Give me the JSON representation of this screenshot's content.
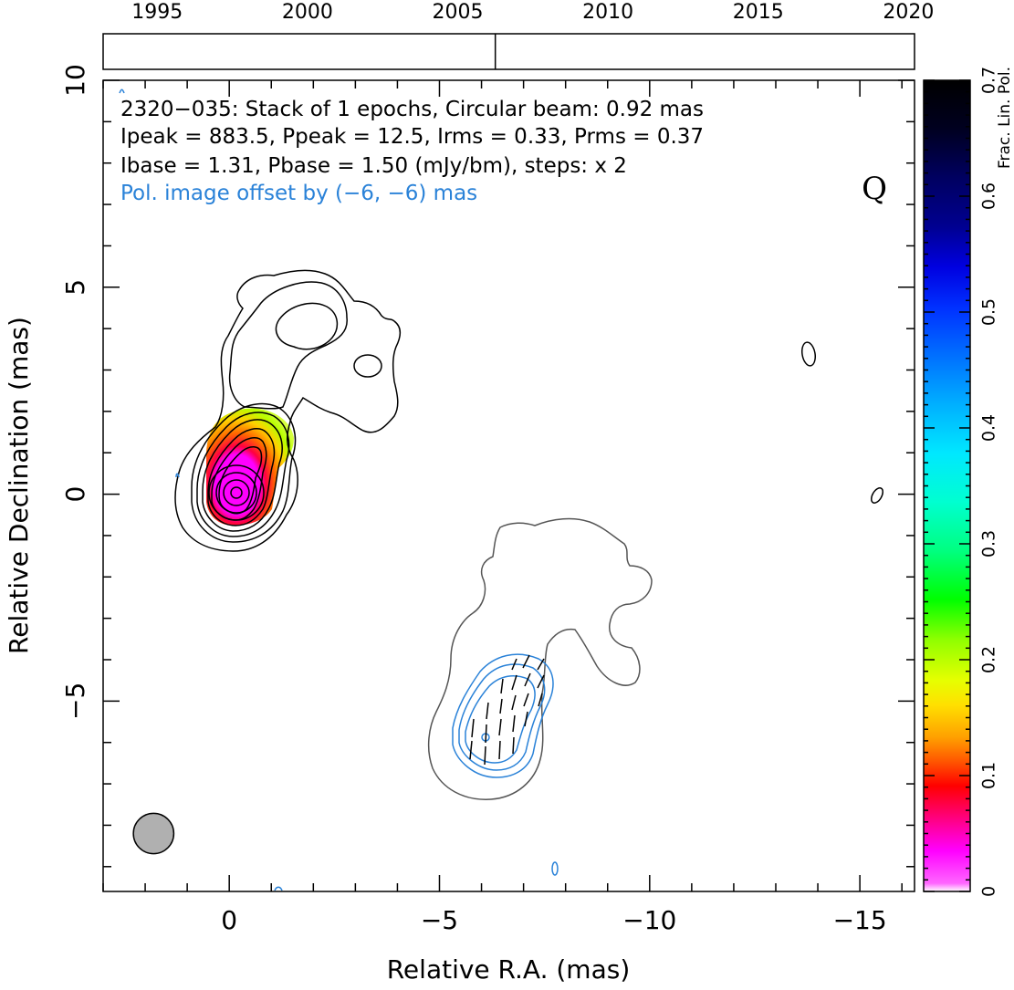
{
  "chart_data": {
    "type": "contour",
    "timeline": {
      "tick_labels": [
        "1995",
        "2000",
        "2005",
        "2010",
        "2015",
        "2020"
      ],
      "tick_values": [
        1995,
        2000,
        2005,
        2010,
        2015,
        2020
      ],
      "range": [
        1993.2,
        2020.2
      ],
      "epochs": [
        2006.25
      ]
    },
    "xlabel": "Relative R.A. (mas)",
    "ylabel": "Relative Declination (mas)",
    "xlim": [
      3.0,
      -16.3
    ],
    "ylim": [
      -9.6,
      10.0
    ],
    "x_ticks": [
      0,
      -5,
      -10,
      -15
    ],
    "x_tick_labels": [
      "0",
      "−5",
      "−10",
      "−15"
    ],
    "y_ticks": [
      10,
      5,
      0,
      -5
    ],
    "y_tick_labels": [
      "10",
      "5",
      "0",
      "−5"
    ],
    "annotations": [
      "2320−035: Stack of 1 epochs, Circular beam: 0.92 mas",
      "Ipeak = 883.5, Ppeak = 12.5, Irms = 0.33, Prms = 0.37",
      "Ibase = 1.31, Pbase = 1.50 (mJy/bm), steps: x 2",
      "Pol. image offset by (−6, −6) mas"
    ],
    "band_label": "Q",
    "beam": {
      "diameter_mas": 0.92,
      "x": 1.8,
      "y": -8.2
    },
    "colorbar": {
      "label": "Frac. Lin. Pol.",
      "range": [
        0,
        0.7
      ],
      "ticks": [
        0,
        0.1,
        0.2,
        0.3,
        0.4,
        0.5,
        0.6,
        0.7
      ],
      "tick_labels": [
        "0",
        "0.1",
        "0.2",
        "0.3",
        "0.4",
        "0.5",
        "0.6",
        "0.7"
      ]
    },
    "colors": {
      "stokes_i": "#000000",
      "offset_i": "#555555",
      "pol": "#2a82d8",
      "beam": "#b0b0b0"
    }
  }
}
